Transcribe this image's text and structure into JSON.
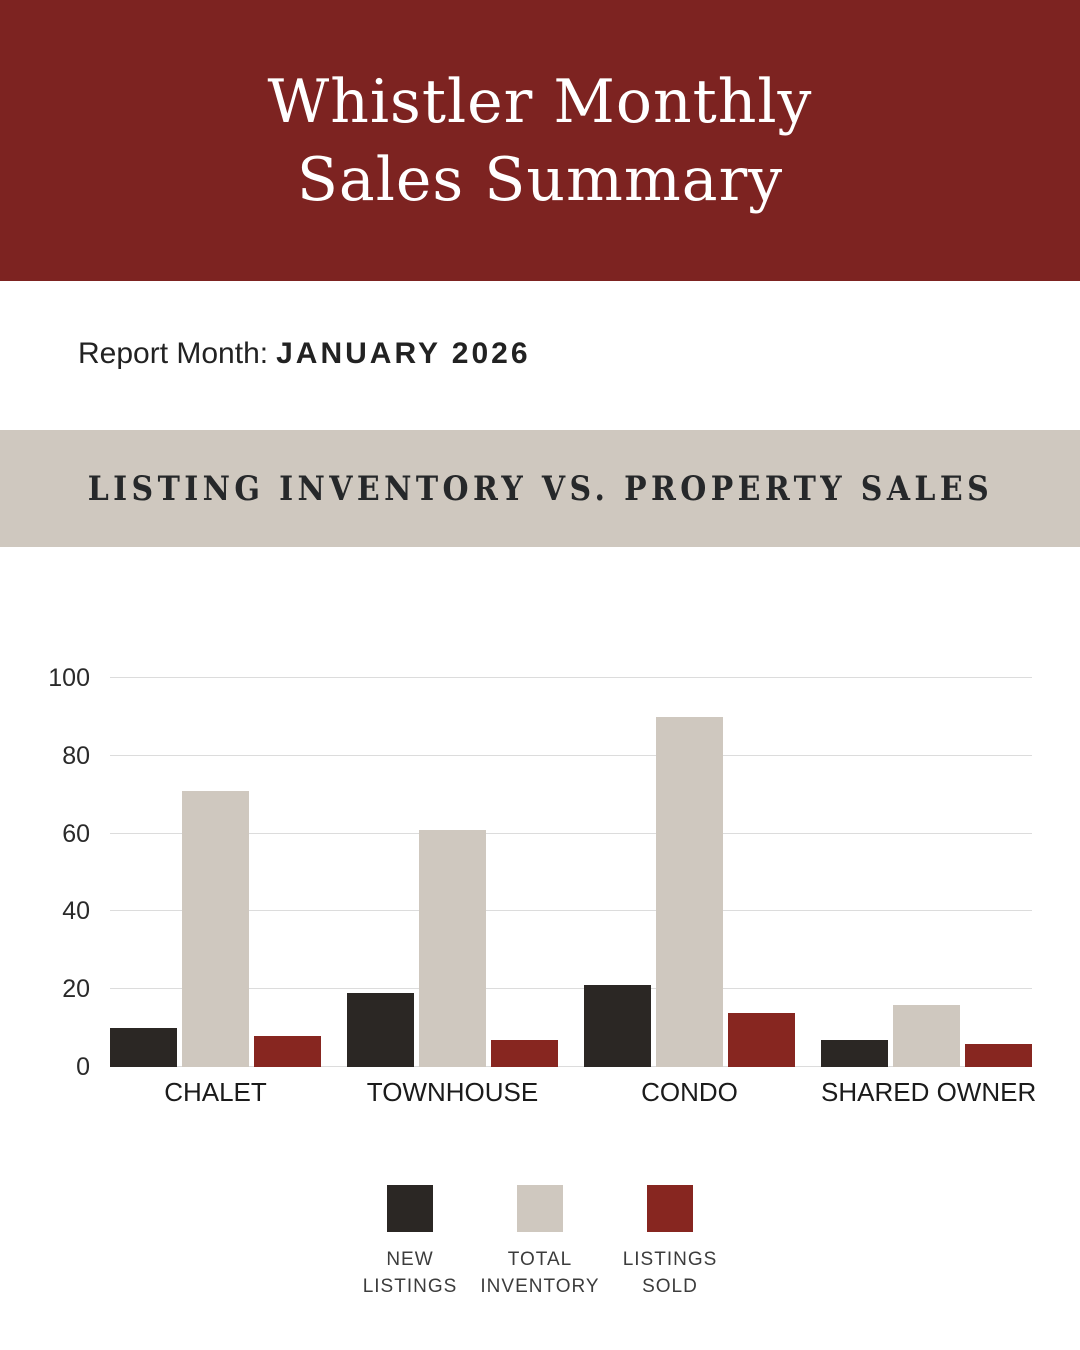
{
  "header": {
    "title_line1": "Whistler Monthly",
    "title_line2": "Sales Summary",
    "bg_color": "#7d2321",
    "text_color": "#ffffff"
  },
  "report": {
    "label": "Report Month:",
    "value": "JANUARY 2026"
  },
  "section": {
    "title": "LISTING INVENTORY VS. PROPERTY SALES",
    "bg_color": "#cfc8bf",
    "text_color": "#26282a"
  },
  "chart_data": {
    "type": "bar",
    "title": "Listing Inventory vs. Property Sales",
    "categories": [
      "CHALET",
      "TOWNHOUSE",
      "CONDO",
      "SHARED OWNER"
    ],
    "series": [
      {
        "name": "NEW LISTINGS",
        "label_lines": [
          "NEW",
          "LISTINGS"
        ],
        "color": "#2b2724",
        "values": [
          10,
          19,
          21,
          7
        ]
      },
      {
        "name": "TOTAL INVENTORY",
        "label_lines": [
          "TOTAL",
          "INVENTORY"
        ],
        "color": "#cfc8bf",
        "values": [
          71,
          61,
          90,
          16
        ]
      },
      {
        "name": "LISTINGS SOLD",
        "label_lines": [
          "LISTINGS",
          "SOLD"
        ],
        "color": "#872620",
        "values": [
          8,
          7,
          14,
          6
        ]
      }
    ],
    "xlabel": "",
    "ylabel": "",
    "ylim": [
      0,
      100
    ],
    "yticks": [
      0,
      20,
      40,
      60,
      80,
      100
    ],
    "grid": true,
    "gridline_color": "#dcdcdc",
    "legend_position": "bottom"
  }
}
